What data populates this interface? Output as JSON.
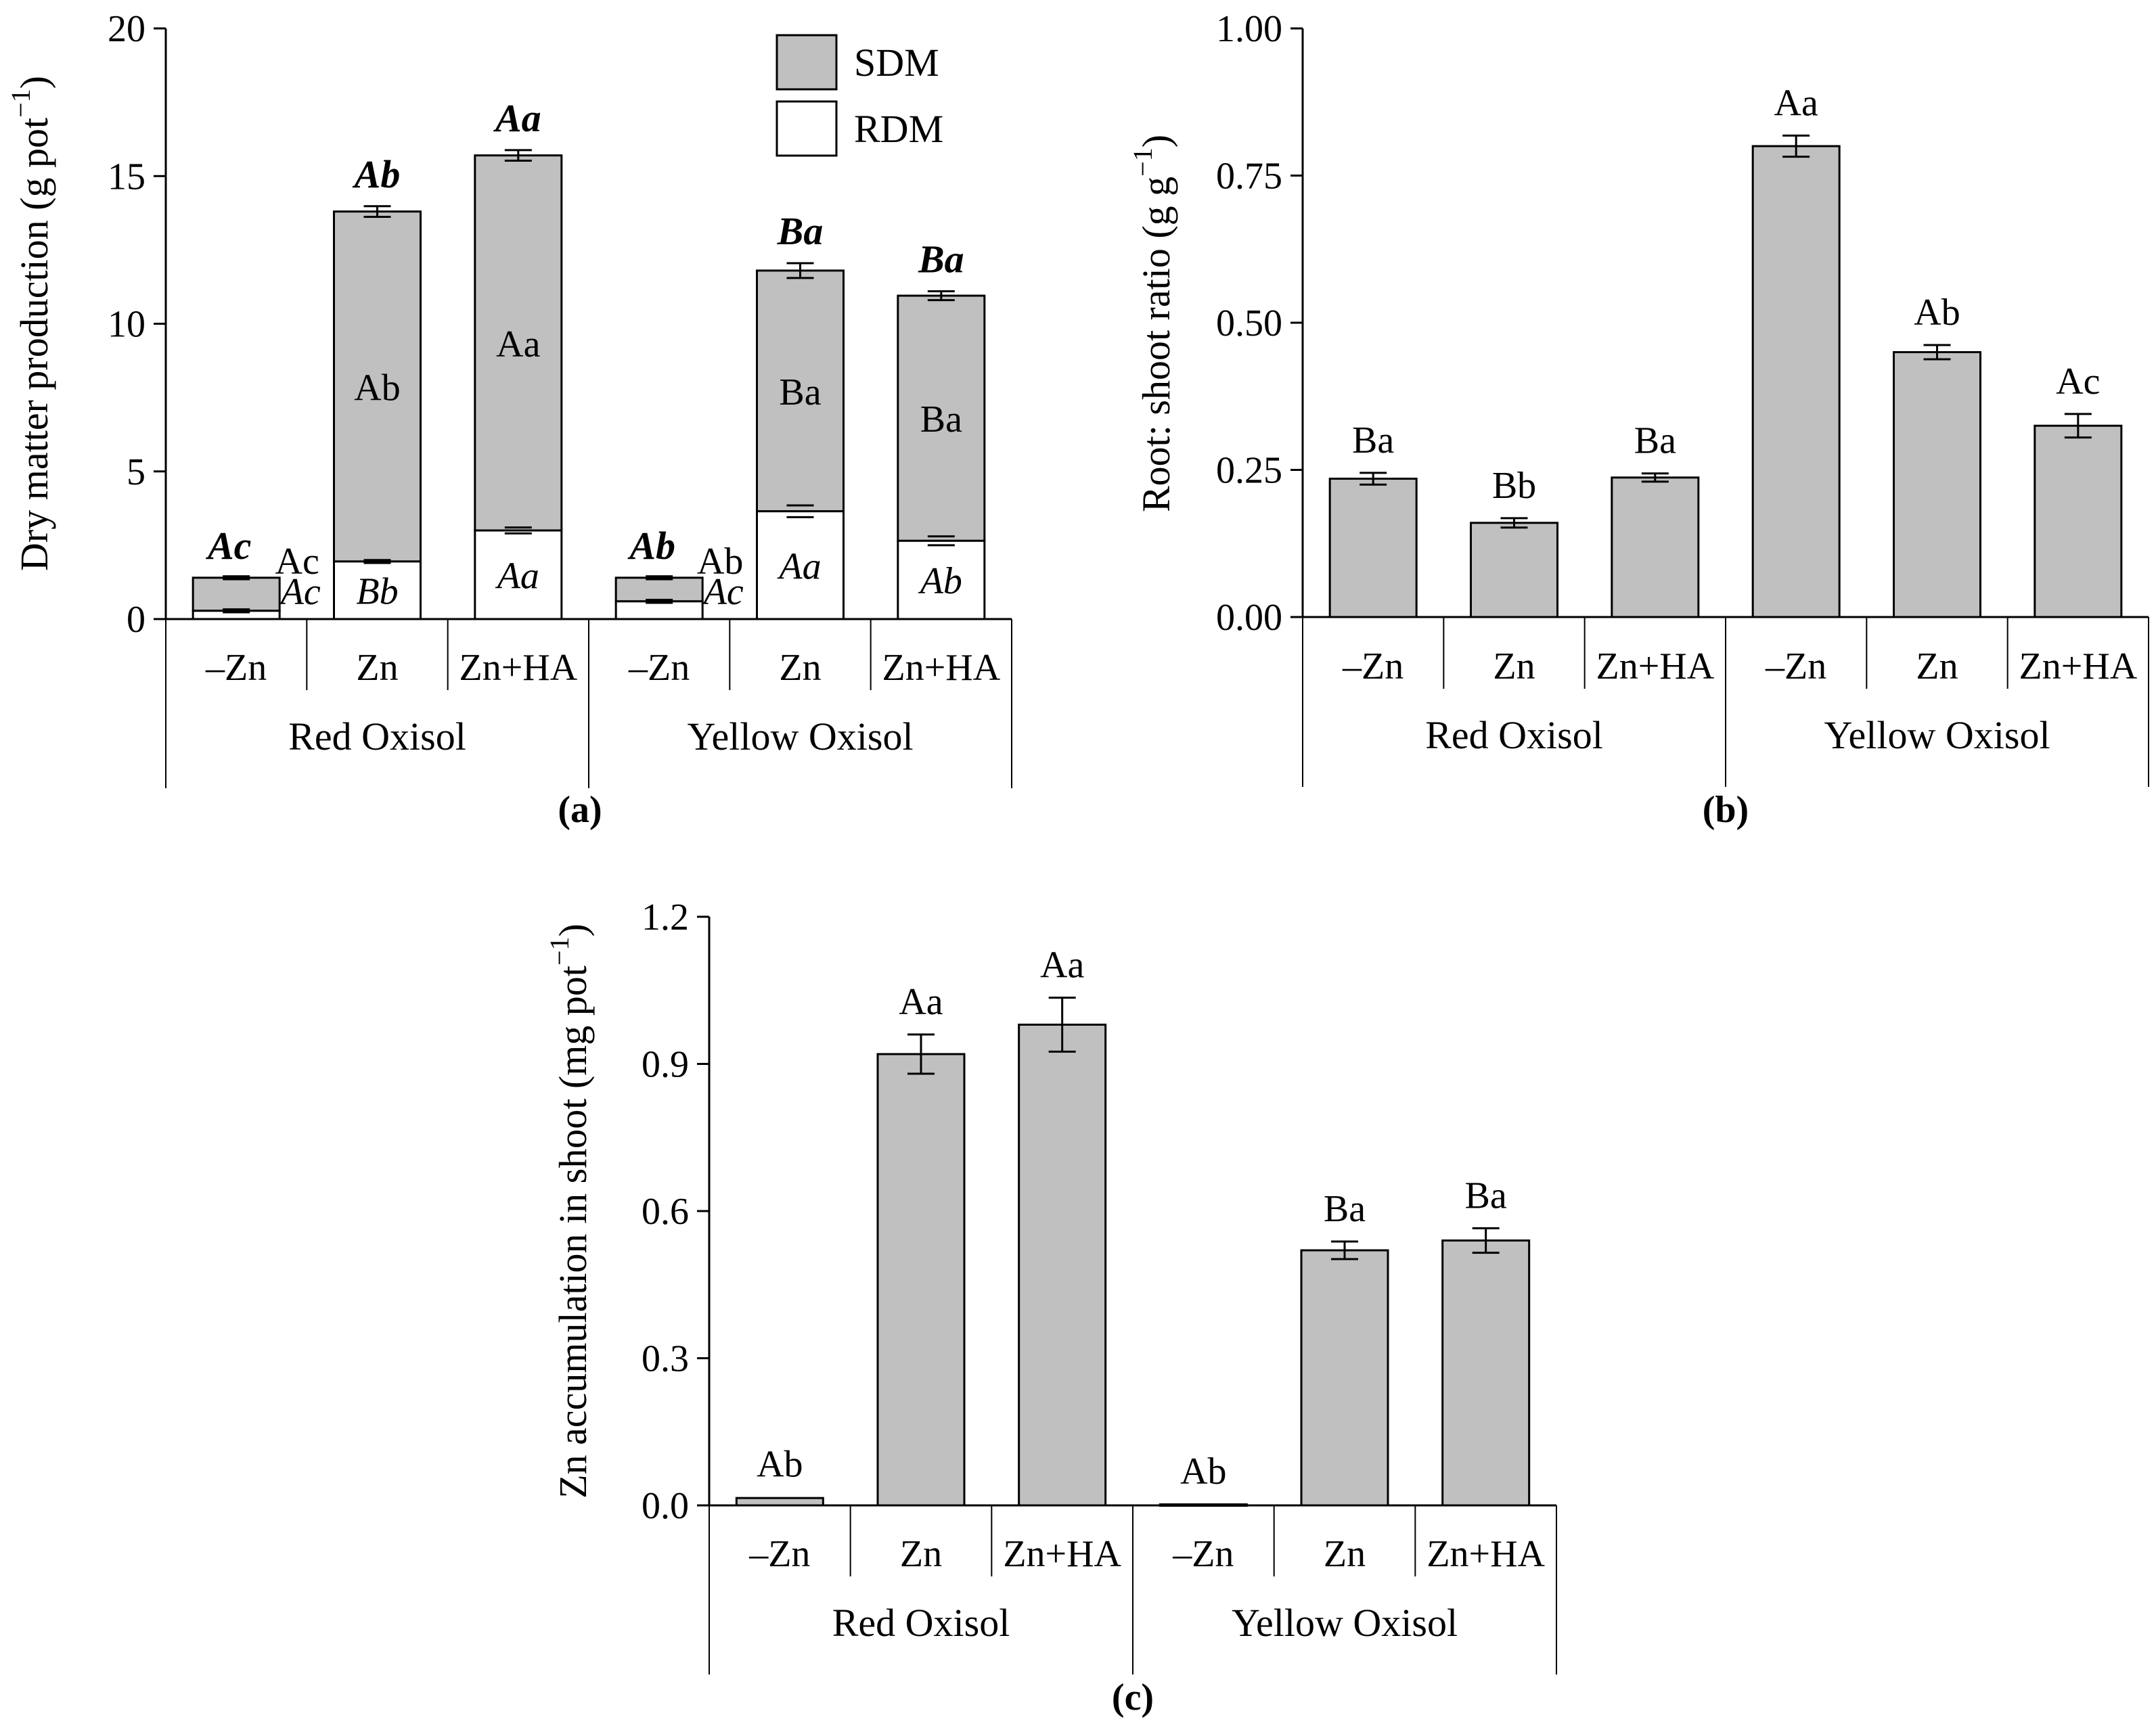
{
  "colors": {
    "bar_fill": "#c0c0c0",
    "rdm_fill": "#ffffff",
    "stroke": "#000000"
  },
  "chart_data": [
    {
      "type": "bar",
      "stacked": true,
      "panel_label": "(a)",
      "ylabel": "Dry matter production (g pot",
      "ylabel_sup": "−1",
      "ylabel_close": ")",
      "ylim": [
        0,
        20
      ],
      "yticks": [
        "0",
        "5",
        "10",
        "15",
        "20"
      ],
      "categories": [
        "–Zn",
        "Zn",
        "Zn+HA",
        "–Zn",
        "Zn",
        "Zn+HA"
      ],
      "groups": [
        "Red Oxisol",
        "Yellow Oxisol"
      ],
      "legend": [
        "SDM",
        "RDM"
      ],
      "series": [
        {
          "name": "RDM",
          "values": [
            0.28,
            1.95,
            3.0,
            0.6,
            3.65,
            2.65
          ],
          "errors": [
            0.05,
            0.05,
            0.1,
            0.05,
            0.2,
            0.15
          ],
          "labels": [
            "Ac",
            "Bb",
            "Aa",
            "Ac",
            "Aa",
            "Ab"
          ]
        },
        {
          "name": "SDM",
          "values": [
            1.12,
            11.85,
            12.7,
            0.8,
            8.15,
            8.3
          ],
          "labels": [
            "Ac",
            "Ab",
            "Aa",
            "Ab",
            "Ba",
            "Ba"
          ]
        }
      ],
      "totals": [
        1.4,
        13.8,
        15.7,
        1.4,
        11.8,
        10.95
      ],
      "total_errors": [
        0.05,
        0.18,
        0.18,
        0.05,
        0.25,
        0.15
      ],
      "total_labels": [
        "Ac",
        "Ab",
        "Aa",
        "Ab",
        "Ba",
        "Ba"
      ]
    },
    {
      "type": "bar",
      "panel_label": "(b)",
      "ylabel": "Root: shoot ratio (g g",
      "ylabel_sup": "−1",
      "ylabel_close": ")",
      "ylim": [
        0,
        1.0
      ],
      "yticks": [
        "0.00",
        "0.25",
        "0.50",
        "0.75",
        "1.00"
      ],
      "categories": [
        "–Zn",
        "Zn",
        "Zn+HA",
        "–Zn",
        "Zn",
        "Zn+HA"
      ],
      "groups": [
        "Red Oxisol",
        "Yellow Oxisol"
      ],
      "values": [
        0.235,
        0.16,
        0.237,
        0.8,
        0.45,
        0.325
      ],
      "errors": [
        0.01,
        0.008,
        0.007,
        0.018,
        0.012,
        0.02
      ],
      "labels": [
        "Ba",
        "Bb",
        "Ba",
        "Aa",
        "Ab",
        "Ac"
      ]
    },
    {
      "type": "bar",
      "panel_label": "(c)",
      "ylabel": "Zn accumulation in shoot (mg pot",
      "ylabel_sup": "−1",
      "ylabel_close": ")",
      "ylim": [
        0,
        1.2
      ],
      "yticks": [
        "0.0",
        "0.3",
        "0.6",
        "0.9",
        "1.2"
      ],
      "categories": [
        "–Zn",
        "Zn",
        "Zn+HA",
        "–Zn",
        "Zn",
        "Zn+HA"
      ],
      "groups": [
        "Red Oxisol",
        "Yellow Oxisol"
      ],
      "values": [
        0.015,
        0.92,
        0.98,
        0.002,
        0.52,
        0.54
      ],
      "errors": [
        0.002,
        0.04,
        0.055,
        0.001,
        0.018,
        0.025
      ],
      "labels": [
        "Ab",
        "Aa",
        "Aa",
        "Ab",
        "Ba",
        "Ba"
      ]
    }
  ]
}
